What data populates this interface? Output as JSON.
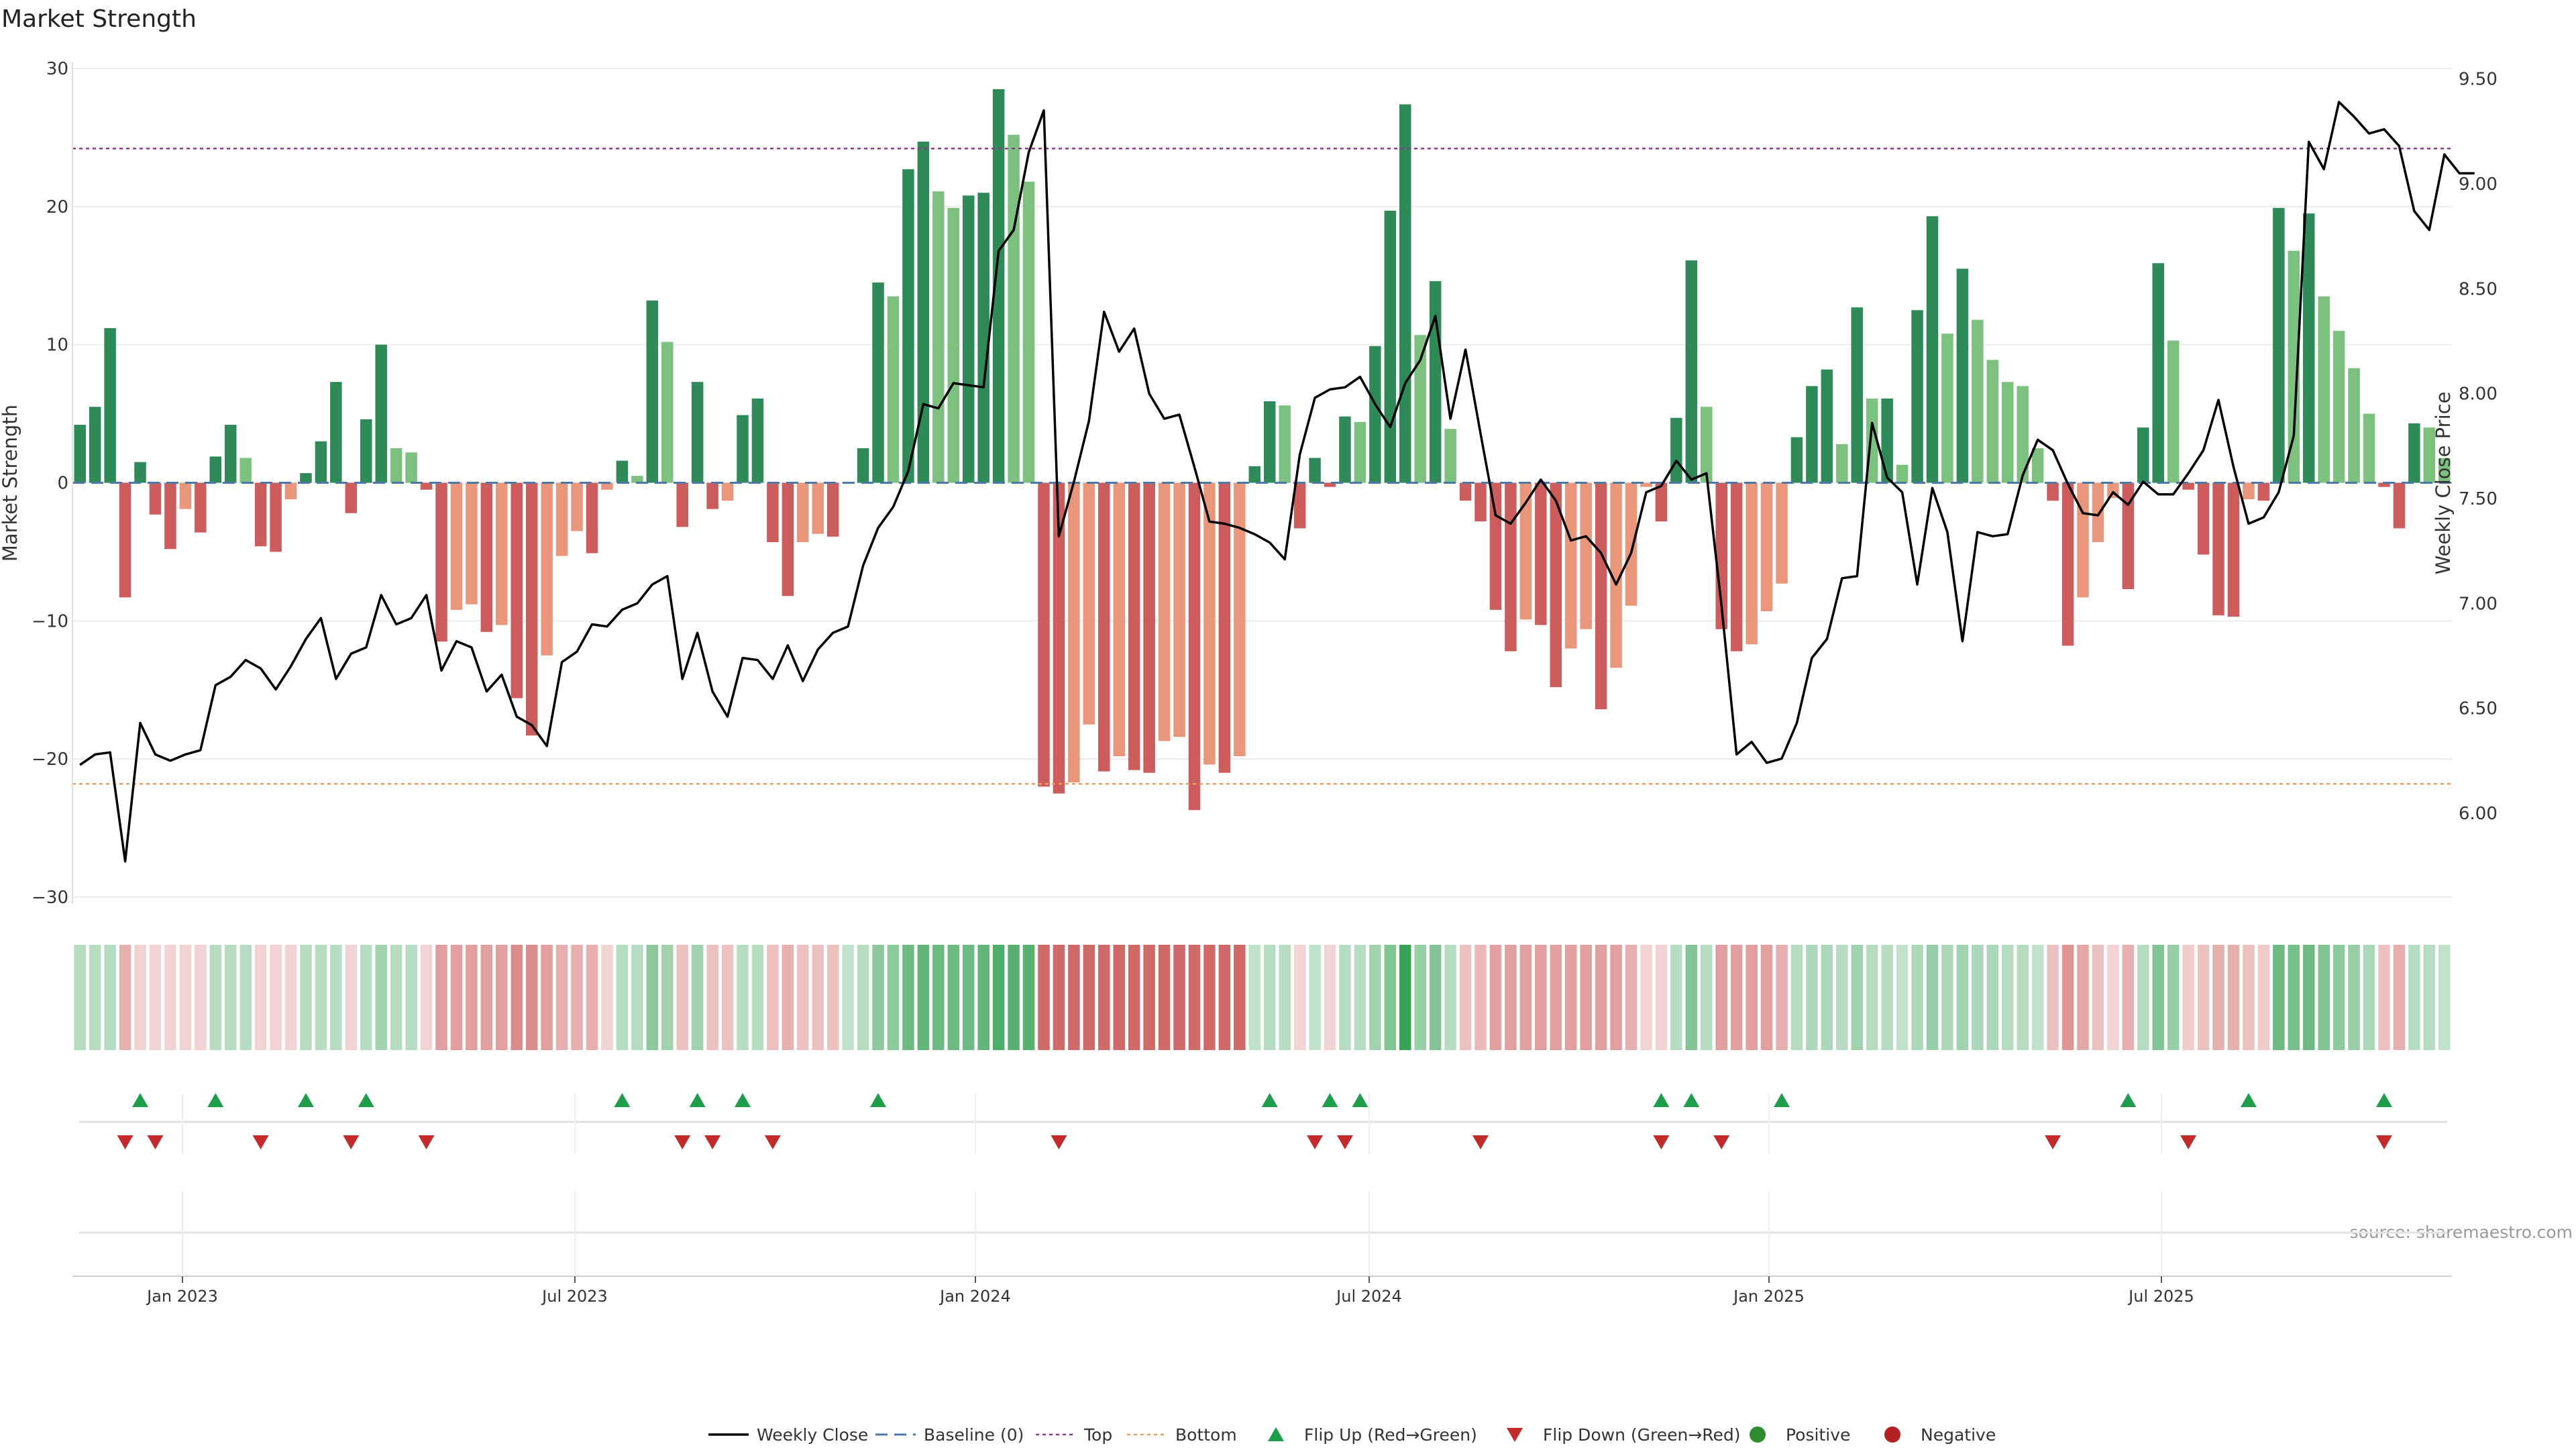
{
  "chart_data": {
    "type": "bar",
    "title": "Market Strength",
    "ylabel": "Market Strength",
    "y2label": "Weekly Close Price",
    "ylim": [
      -30,
      30
    ],
    "y2lim": [
      5.6,
      9.55
    ],
    "yticks": [
      30,
      20,
      10,
      0,
      -10,
      -20,
      -30
    ],
    "y2ticks": [
      "9.50",
      "9.00",
      "8.50",
      "8.00",
      "7.50",
      "7.00",
      "6.50",
      "6.00"
    ],
    "xticks": [
      "Jan 2023",
      "Jul 2023",
      "Jan 2024",
      "Jul 2024",
      "Jan 2025",
      "Jul 2025"
    ],
    "top_line": 24.2,
    "bottom_line": -21.8,
    "source": "source: sharemaestro.com",
    "grid": true,
    "legend_position": "bottom",
    "legend": [
      "Weekly Close",
      "Baseline (0)",
      "Top",
      "Bottom",
      "Flip Up (Red→Green)",
      "Flip Down (Green→Red)",
      "Positive",
      "Negative"
    ],
    "colors": {
      "positive_strong": "#2e8b57",
      "positive_light": "#7dc17e",
      "negative_strong": "#cd5c5c",
      "negative_light": "#e9967a",
      "close_line": "#000000",
      "baseline": "#4a78a8",
      "top": "#8b3a8b",
      "bottom": "#e9a060",
      "flip_up": "#1e9e4a",
      "flip_down": "#c42a2a",
      "legend_positive": "#2e8b2e",
      "legend_negative": "#b22222"
    },
    "series": [
      {
        "name": "Market Strength",
        "values": [
          4.2,
          5.5,
          11.2,
          -8.3,
          1.5,
          -2.3,
          -4.8,
          -1.9,
          -3.6,
          1.9,
          4.2,
          1.8,
          -4.6,
          -5.0,
          -1.2,
          0.7,
          3.0,
          7.3,
          -2.2,
          4.6,
          10.0,
          2.5,
          2.2,
          -0.5,
          -11.5,
          -9.2,
          -8.8,
          -10.8,
          -10.3,
          -15.6,
          -18.3,
          -12.5,
          -5.3,
          -3.5,
          -5.1,
          -0.5,
          1.6,
          0.5,
          13.2,
          10.2,
          -3.2,
          7.3,
          -1.9,
          -1.3,
          4.9,
          6.1,
          -4.3,
          -8.2,
          -4.3,
          -3.7,
          -3.9,
          0,
          2.5,
          14.5,
          13.5,
          22.7,
          24.7,
          21.1,
          19.9,
          20.8,
          21.0,
          28.5,
          25.2,
          21.8,
          -22.0,
          -22.5,
          -21.7,
          -17.5,
          -20.9,
          -19.8,
          -20.8,
          -21.0,
          -18.7,
          -18.4,
          -23.7,
          -20.4,
          -21.0,
          -19.8,
          1.2,
          5.9,
          5.6,
          -3.3,
          1.8,
          -0.3,
          4.8,
          4.4,
          9.9,
          19.7,
          27.4,
          10.7,
          14.6,
          3.9,
          -1.3,
          -2.8,
          -9.2,
          -12.2,
          -9.9,
          -10.3,
          -14.8,
          -12.0,
          -10.6,
          -16.4,
          -13.4,
          -8.9,
          -0.3,
          -2.8,
          4.7,
          16.1,
          5.5,
          -10.6,
          -12.2,
          -11.7,
          -9.3,
          -7.3,
          3.3,
          7.0,
          8.2,
          2.8,
          12.7,
          6.1,
          6.1,
          1.3,
          12.5,
          19.3,
          10.8,
          15.5,
          11.8,
          8.9,
          7.3,
          7.0,
          2.5,
          -1.3,
          -11.8,
          -8.3,
          -4.3,
          -1.1,
          -7.7,
          4.0,
          15.9,
          10.3,
          -0.5,
          -5.2,
          -9.6,
          -9.7,
          -1.2,
          -1.3,
          19.9,
          16.8,
          19.5,
          13.5,
          11.0,
          8.3,
          5.0,
          -0.3,
          -3.3,
          4.3,
          4.0,
          1.8
        ]
      },
      {
        "name": "Weekly Close",
        "values": [
          6.23,
          6.28,
          6.29,
          5.77,
          6.43,
          6.28,
          6.25,
          6.28,
          6.3,
          6.61,
          6.65,
          6.73,
          6.69,
          6.59,
          6.7,
          6.83,
          6.93,
          6.64,
          6.76,
          6.79,
          7.04,
          6.9,
          6.93,
          7.04,
          6.68,
          6.82,
          6.79,
          6.58,
          6.66,
          6.46,
          6.42,
          6.32,
          6.72,
          6.77,
          6.9,
          6.89,
          6.97,
          7.0,
          7.09,
          7.13,
          6.64,
          6.86,
          6.58,
          6.46,
          6.74,
          6.73,
          6.64,
          6.8,
          6.63,
          6.78,
          6.86,
          6.89,
          7.18,
          7.36,
          7.46,
          7.63,
          7.95,
          7.93,
          8.05,
          8.04,
          8.03,
          8.68,
          8.78,
          9.15,
          9.35,
          7.32,
          7.58,
          7.87,
          8.39,
          8.2,
          8.31,
          8.0,
          7.88,
          7.9,
          7.65,
          7.39,
          7.38,
          7.36,
          7.33,
          7.29,
          7.21,
          7.71,
          7.98,
          8.02,
          8.03,
          8.08,
          7.95,
          7.84,
          8.05,
          8.16,
          8.37,
          7.88,
          8.21,
          7.81,
          7.42,
          7.38,
          7.48,
          7.59,
          7.49,
          7.3,
          7.32,
          7.24,
          7.09,
          7.24,
          7.53,
          7.56,
          7.68,
          7.59,
          7.62,
          6.99,
          6.28,
          6.34,
          6.24,
          6.26,
          6.43,
          6.74,
          6.83,
          7.12,
          7.13,
          7.86,
          7.6,
          7.53,
          7.09,
          7.55,
          7.34,
          6.82,
          7.34,
          7.32,
          7.33,
          7.61,
          7.78,
          7.73,
          7.57,
          7.43,
          7.42,
          7.53,
          7.47,
          7.58,
          7.52,
          7.52,
          7.62,
          7.73,
          7.97,
          7.65,
          7.38,
          7.41,
          7.53,
          7.8,
          9.2,
          9.07,
          9.39,
          9.32,
          9.24,
          9.26,
          9.18,
          8.87,
          8.78,
          9.14,
          9.05,
          9.05
        ]
      },
      {
        "name": "Zone Strength",
        "values": [
          0.35,
          0.35,
          0.35,
          -0.45,
          -0.25,
          -0.25,
          -0.25,
          -0.25,
          -0.25,
          0.35,
          0.35,
          0.35,
          -0.25,
          -0.25,
          -0.25,
          0.35,
          0.35,
          0.35,
          -0.25,
          0.35,
          0.45,
          0.35,
          0.35,
          -0.25,
          -0.55,
          -0.55,
          -0.55,
          -0.55,
          -0.55,
          -0.65,
          -0.65,
          -0.55,
          -0.45,
          -0.45,
          -0.45,
          -0.25,
          0.35,
          0.35,
          0.55,
          0.45,
          -0.35,
          0.45,
          -0.35,
          -0.35,
          0.35,
          0.35,
          -0.35,
          -0.45,
          -0.35,
          -0.35,
          -0.35,
          0.3,
          0.35,
          0.55,
          0.55,
          0.7,
          0.75,
          0.7,
          0.7,
          0.7,
          0.75,
          0.85,
          0.8,
          0.8,
          -0.85,
          -0.85,
          -0.85,
          -0.85,
          -0.85,
          -0.85,
          -0.85,
          -0.85,
          -0.85,
          -0.85,
          -0.85,
          -0.85,
          -0.85,
          -0.85,
          0.3,
          0.35,
          0.35,
          -0.25,
          0.3,
          -0.25,
          0.35,
          0.35,
          0.45,
          0.6,
          0.95,
          0.5,
          0.6,
          0.35,
          -0.35,
          -0.4,
          -0.55,
          -0.55,
          -0.55,
          -0.55,
          -0.55,
          -0.55,
          -0.55,
          -0.55,
          -0.55,
          -0.45,
          -0.25,
          -0.25,
          0.35,
          0.6,
          0.35,
          -0.55,
          -0.55,
          -0.55,
          -0.55,
          -0.45,
          0.35,
          0.4,
          0.4,
          0.35,
          0.45,
          0.35,
          0.35,
          0.3,
          0.4,
          0.5,
          0.4,
          0.45,
          0.4,
          0.4,
          0.35,
          0.35,
          0.3,
          -0.35,
          -0.6,
          -0.5,
          -0.35,
          -0.25,
          -0.45,
          0.35,
          0.6,
          0.5,
          -0.3,
          -0.35,
          -0.45,
          -0.45,
          -0.35,
          -0.3,
          0.7,
          0.65,
          0.7,
          0.6,
          0.55,
          0.5,
          0.4,
          -0.35,
          -0.45,
          0.35,
          0.35,
          0.3
        ]
      }
    ],
    "flip_up_weeks": [
      4,
      9,
      15,
      19,
      36,
      41,
      44,
      53,
      79,
      83,
      85,
      105,
      107,
      113,
      136,
      144,
      153
    ],
    "flip_down_weeks": [
      3,
      5,
      12,
      18,
      23,
      40,
      42,
      46,
      65,
      82,
      84,
      93,
      105,
      109,
      131,
      140,
      153
    ]
  }
}
